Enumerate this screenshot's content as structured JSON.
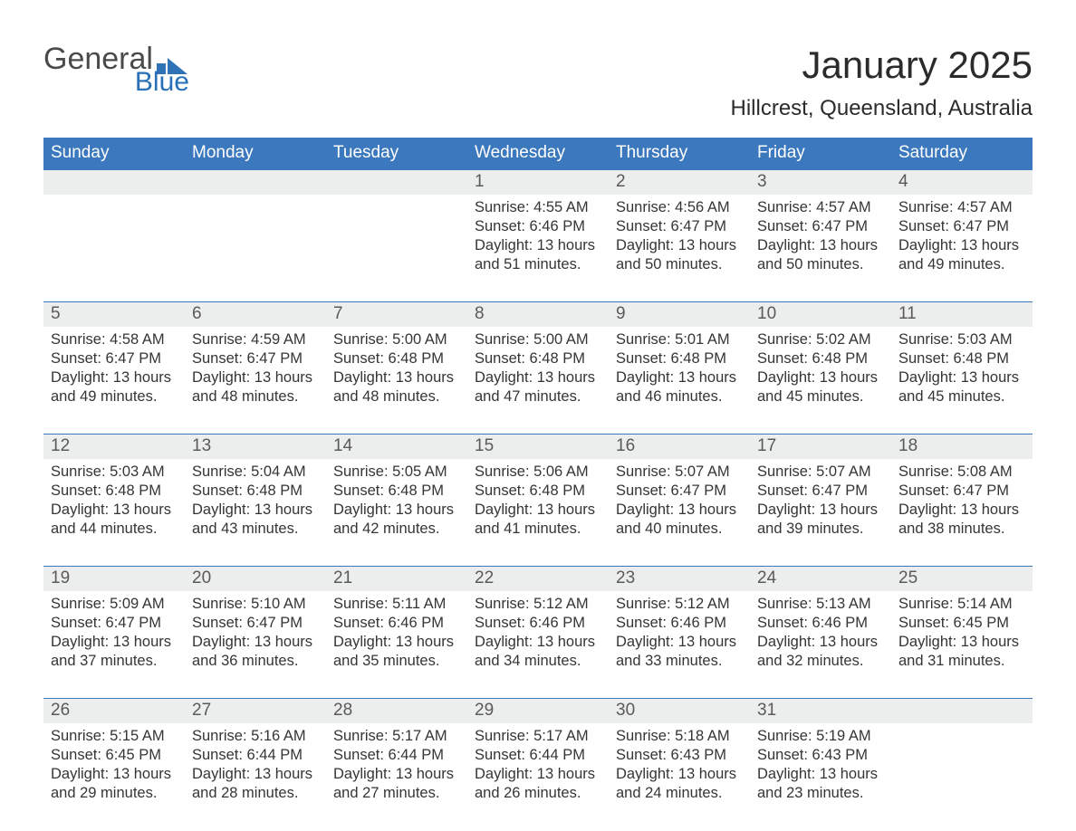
{
  "logo": {
    "text_general": "General",
    "text_blue": "Blue",
    "mark_color": "#2f72b6"
  },
  "title": "January 2025",
  "location": "Hillcrest, Queensland, Australia",
  "colors": {
    "header_bg": "#3b78be",
    "header_text": "#ffffff",
    "daynum_bg": "#eceded",
    "week_border": "#3b78be",
    "body_text": "#353535",
    "page_bg": "#ffffff"
  },
  "typography": {
    "title_fontsize": 42,
    "location_fontsize": 24,
    "dow_fontsize": 19,
    "daynum_fontsize": 19,
    "cell_fontsize": 16.5
  },
  "days_of_week": [
    "Sunday",
    "Monday",
    "Tuesday",
    "Wednesday",
    "Thursday",
    "Friday",
    "Saturday"
  ],
  "weeks": [
    [
      null,
      null,
      null,
      {
        "n": "1",
        "sunrise": "4:55 AM",
        "sunset": "6:46 PM",
        "daylight": "13 hours and 51 minutes."
      },
      {
        "n": "2",
        "sunrise": "4:56 AM",
        "sunset": "6:47 PM",
        "daylight": "13 hours and 50 minutes."
      },
      {
        "n": "3",
        "sunrise": "4:57 AM",
        "sunset": "6:47 PM",
        "daylight": "13 hours and 50 minutes."
      },
      {
        "n": "4",
        "sunrise": "4:57 AM",
        "sunset": "6:47 PM",
        "daylight": "13 hours and 49 minutes."
      }
    ],
    [
      {
        "n": "5",
        "sunrise": "4:58 AM",
        "sunset": "6:47 PM",
        "daylight": "13 hours and 49 minutes."
      },
      {
        "n": "6",
        "sunrise": "4:59 AM",
        "sunset": "6:47 PM",
        "daylight": "13 hours and 48 minutes."
      },
      {
        "n": "7",
        "sunrise": "5:00 AM",
        "sunset": "6:48 PM",
        "daylight": "13 hours and 48 minutes."
      },
      {
        "n": "8",
        "sunrise": "5:00 AM",
        "sunset": "6:48 PM",
        "daylight": "13 hours and 47 minutes."
      },
      {
        "n": "9",
        "sunrise": "5:01 AM",
        "sunset": "6:48 PM",
        "daylight": "13 hours and 46 minutes."
      },
      {
        "n": "10",
        "sunrise": "5:02 AM",
        "sunset": "6:48 PM",
        "daylight": "13 hours and 45 minutes."
      },
      {
        "n": "11",
        "sunrise": "5:03 AM",
        "sunset": "6:48 PM",
        "daylight": "13 hours and 45 minutes."
      }
    ],
    [
      {
        "n": "12",
        "sunrise": "5:03 AM",
        "sunset": "6:48 PM",
        "daylight": "13 hours and 44 minutes."
      },
      {
        "n": "13",
        "sunrise": "5:04 AM",
        "sunset": "6:48 PM",
        "daylight": "13 hours and 43 minutes."
      },
      {
        "n": "14",
        "sunrise": "5:05 AM",
        "sunset": "6:48 PM",
        "daylight": "13 hours and 42 minutes."
      },
      {
        "n": "15",
        "sunrise": "5:06 AM",
        "sunset": "6:48 PM",
        "daylight": "13 hours and 41 minutes."
      },
      {
        "n": "16",
        "sunrise": "5:07 AM",
        "sunset": "6:47 PM",
        "daylight": "13 hours and 40 minutes."
      },
      {
        "n": "17",
        "sunrise": "5:07 AM",
        "sunset": "6:47 PM",
        "daylight": "13 hours and 39 minutes."
      },
      {
        "n": "18",
        "sunrise": "5:08 AM",
        "sunset": "6:47 PM",
        "daylight": "13 hours and 38 minutes."
      }
    ],
    [
      {
        "n": "19",
        "sunrise": "5:09 AM",
        "sunset": "6:47 PM",
        "daylight": "13 hours and 37 minutes."
      },
      {
        "n": "20",
        "sunrise": "5:10 AM",
        "sunset": "6:47 PM",
        "daylight": "13 hours and 36 minutes."
      },
      {
        "n": "21",
        "sunrise": "5:11 AM",
        "sunset": "6:46 PM",
        "daylight": "13 hours and 35 minutes."
      },
      {
        "n": "22",
        "sunrise": "5:12 AM",
        "sunset": "6:46 PM",
        "daylight": "13 hours and 34 minutes."
      },
      {
        "n": "23",
        "sunrise": "5:12 AM",
        "sunset": "6:46 PM",
        "daylight": "13 hours and 33 minutes."
      },
      {
        "n": "24",
        "sunrise": "5:13 AM",
        "sunset": "6:46 PM",
        "daylight": "13 hours and 32 minutes."
      },
      {
        "n": "25",
        "sunrise": "5:14 AM",
        "sunset": "6:45 PM",
        "daylight": "13 hours and 31 minutes."
      }
    ],
    [
      {
        "n": "26",
        "sunrise": "5:15 AM",
        "sunset": "6:45 PM",
        "daylight": "13 hours and 29 minutes."
      },
      {
        "n": "27",
        "sunrise": "5:16 AM",
        "sunset": "6:44 PM",
        "daylight": "13 hours and 28 minutes."
      },
      {
        "n": "28",
        "sunrise": "5:17 AM",
        "sunset": "6:44 PM",
        "daylight": "13 hours and 27 minutes."
      },
      {
        "n": "29",
        "sunrise": "5:17 AM",
        "sunset": "6:44 PM",
        "daylight": "13 hours and 26 minutes."
      },
      {
        "n": "30",
        "sunrise": "5:18 AM",
        "sunset": "6:43 PM",
        "daylight": "13 hours and 24 minutes."
      },
      {
        "n": "31",
        "sunrise": "5:19 AM",
        "sunset": "6:43 PM",
        "daylight": "13 hours and 23 minutes."
      },
      null
    ]
  ],
  "labels": {
    "sunrise": "Sunrise:",
    "sunset": "Sunset:",
    "daylight": "Daylight:"
  }
}
